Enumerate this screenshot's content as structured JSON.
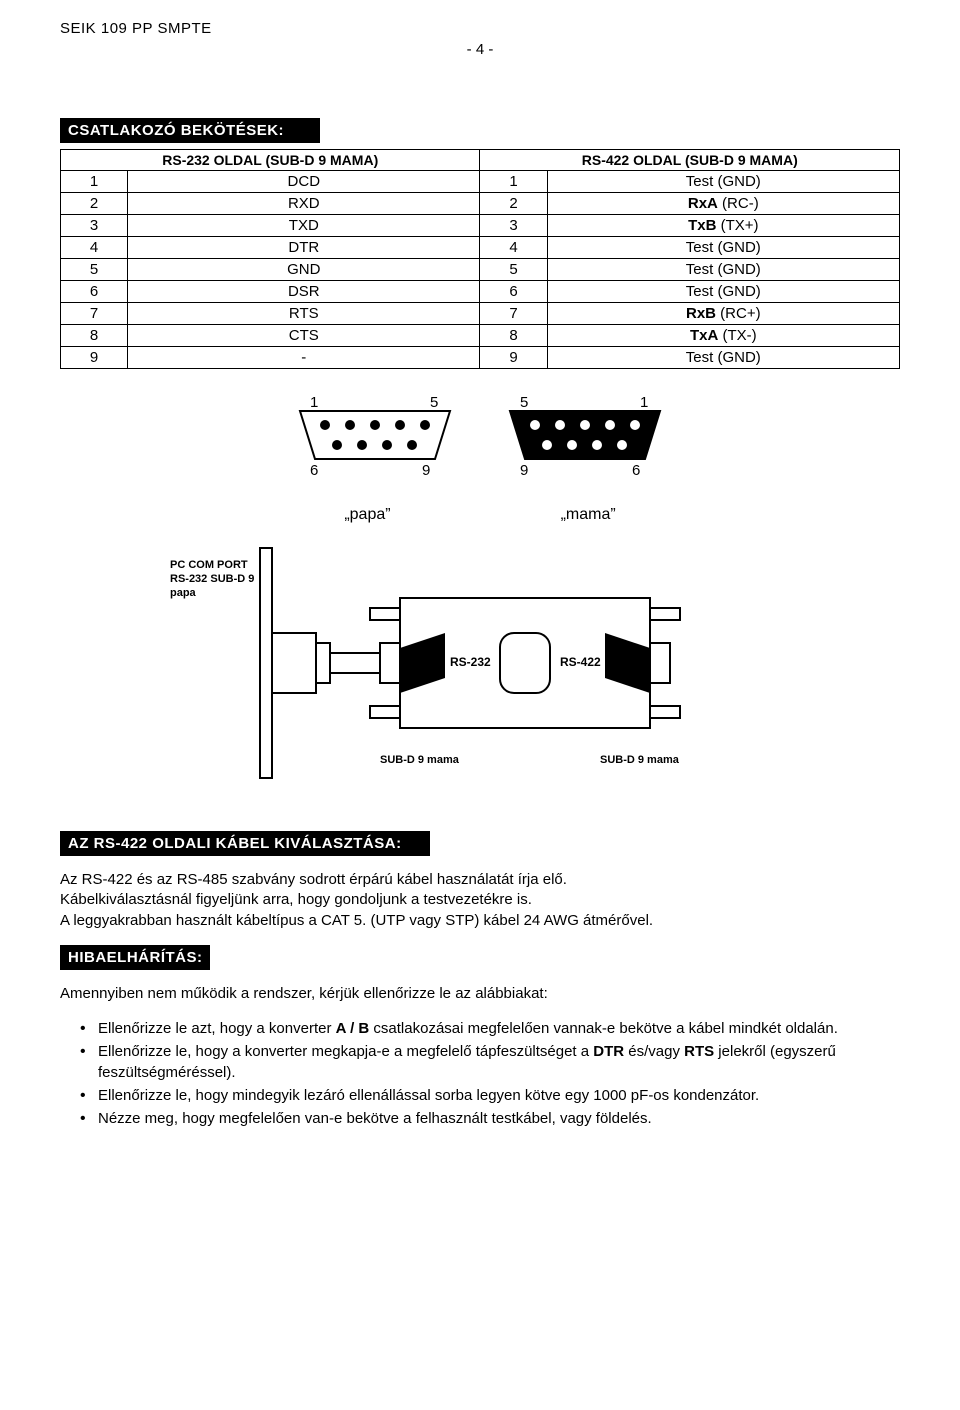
{
  "header": {
    "title": "SEIK 109 PP SMPTE",
    "page": "- 4 -"
  },
  "section1": {
    "title": "CSATLAKOZÓ BEKÖTÉSEK:",
    "headerLeft": "RS-232 OLDAL (SUB-D 9 MAMA)",
    "headerRight": "RS-422 OLDAL (SUB-D 9 MAMA)",
    "rows": [
      {
        "l1": "1",
        "l2": "DCD",
        "r1": "1",
        "r2": "Test (GND)"
      },
      {
        "l1": "2",
        "l2": "RXD",
        "r1": "2",
        "r2": "RxA (RC-)",
        "r2bold": true
      },
      {
        "l1": "3",
        "l2": "TXD",
        "r1": "3",
        "r2": "TxB (TX+)",
        "r2bold": true
      },
      {
        "l1": "4",
        "l2": "DTR",
        "r1": "4",
        "r2": "Test (GND)"
      },
      {
        "l1": "5",
        "l2": "GND",
        "r1": "5",
        "r2": "Test (GND)"
      },
      {
        "l1": "6",
        "l2": "DSR",
        "r1": "6",
        "r2": "Test (GND)"
      },
      {
        "l1": "7",
        "l2": "RTS",
        "r1": "7",
        "r2": "RxB (RC+)",
        "r2bold": true
      },
      {
        "l1": "8",
        "l2": "CTS",
        "r1": "8",
        "r2": "TxA (TX-)",
        "r2bold": true
      },
      {
        "l1": "9",
        "l2": "-",
        "r1": "9",
        "r2": "Test (GND)"
      }
    ]
  },
  "connectors": {
    "left": {
      "topL": "1",
      "topR": "5",
      "botL": "6",
      "botR": "9",
      "name": "„papa”"
    },
    "right": {
      "topL": "5",
      "topR": "1",
      "botL": "9",
      "botR": "6",
      "name": "„mama”"
    }
  },
  "diagram": {
    "pcport1": "PC COM PORT",
    "pcport2": "RS-232 SUB-D 9",
    "pcport3": "papa",
    "rs232": "RS-232",
    "rs422": "RS-422",
    "sub_left": "SUB-D 9 mama",
    "sub_right": "SUB-D 9 mama"
  },
  "section2": {
    "title": "AZ RS-422 OLDALI KÁBEL KIVÁLASZTÁSA:",
    "p1": "Az RS-422 és az RS-485 szabvány sodrott érpárú kábel használatát írja elő.",
    "p2": "Kábelkiválasztásnál figyeljünk arra, hogy gondoljunk a testvezetékre is.",
    "p3": "A leggyakrabban használt kábeltípus a CAT 5. (UTP vagy STP) kábel 24 AWG átmérővel."
  },
  "section3": {
    "title": "HIBAELHÁRÍTÁS:",
    "intro": "Amennyiben nem működik a rendszer, kérjük ellenőrizze le az alábbiakat:",
    "items": [
      {
        "pre": "Ellenőrizze le azt, hogy a konverter ",
        "b": "A / B",
        "post": " csatlakozásai megfelelően vannak-e bekötve a kábel mindkét oldalán."
      },
      {
        "pre": "Ellenőrizze le, hogy a konverter megkapja-e a megfelelő tápfeszültséget a ",
        "b": "DTR",
        "mid": " és/vagy ",
        "b2": "RTS",
        "post": " jelekről (egyszerű feszültségméréssel)."
      },
      {
        "pre": "Ellenőrizze le, hogy mindegyik lezáró ellenállással sorba legyen kötve egy 1000 pF-os kondenzátor.",
        "b": "",
        "post": ""
      },
      {
        "pre": "Nézze meg, hogy megfelelően van-e bekötve a felhasznált testkábel, vagy földelés.",
        "b": "",
        "post": ""
      }
    ]
  },
  "style": {
    "bg": "#ffffff",
    "fg": "#000000",
    "barBg": "#000000",
    "barFg": "#ffffff"
  }
}
